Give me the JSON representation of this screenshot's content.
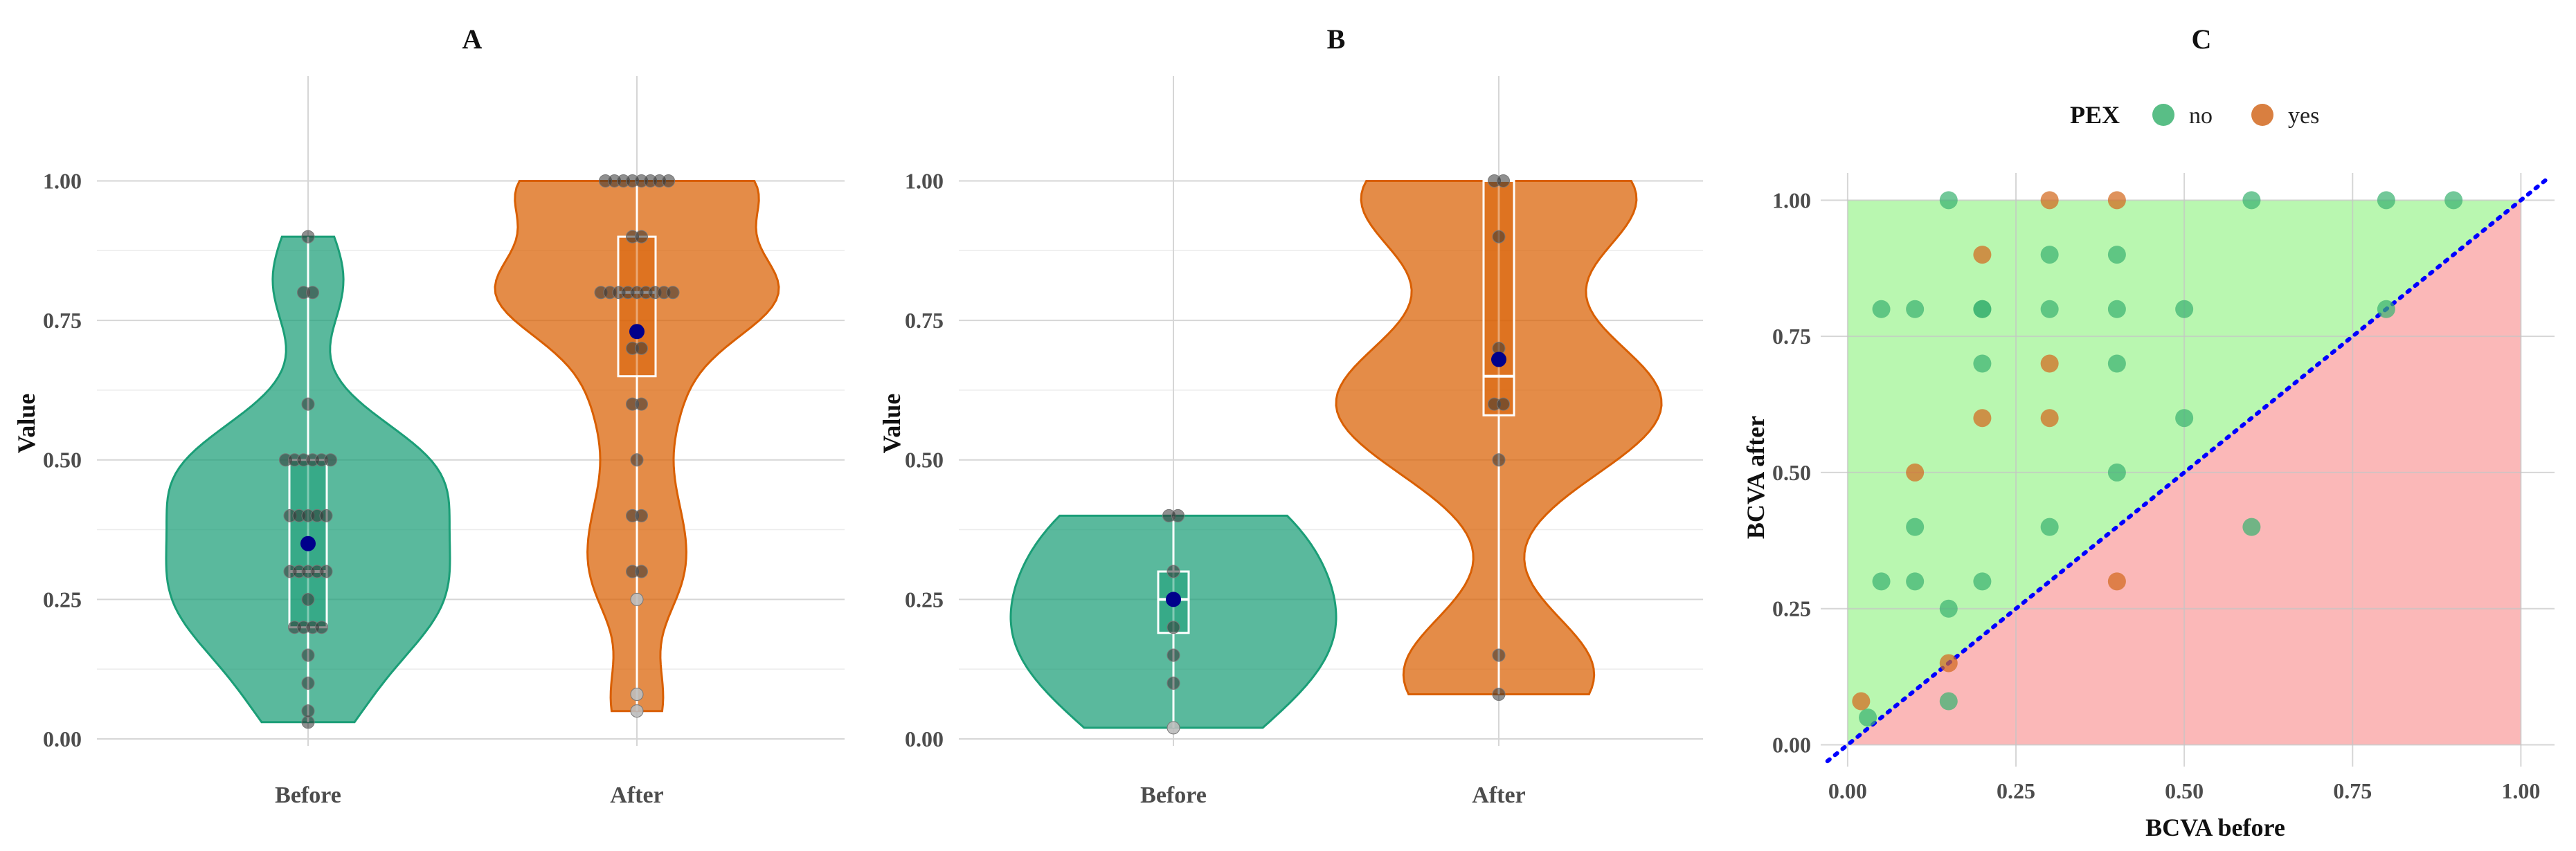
{
  "colors": {
    "before_fill": "#1b9e77",
    "after_fill": "#d95f02",
    "mean_point": "#00008b",
    "grid": "#d6d6d6",
    "improve_region": "#b9f7b0",
    "worsen_region": "#fbb8b8",
    "diagonal": "#0000ff"
  },
  "chart_data": [
    {
      "id": "A",
      "type": "violin",
      "title": "A",
      "xlabel": "",
      "ylabel": "Value",
      "ylim": [
        0,
        1.07
      ],
      "yticks": [
        "0.00",
        "0.25",
        "0.50",
        "0.75",
        "1.00"
      ],
      "categories": [
        "Before",
        "After"
      ],
      "groups": [
        {
          "category": "Before",
          "color": "#1b9e77",
          "min": 0.03,
          "q1": 0.2,
          "median": 0.3,
          "q3": 0.5,
          "max": 0.9,
          "mean": 0.35,
          "points": [
            0.03,
            0.05,
            0.1,
            0.15,
            0.2,
            0.2,
            0.2,
            0.2,
            0.25,
            0.3,
            0.3,
            0.3,
            0.3,
            0.3,
            0.4,
            0.4,
            0.4,
            0.4,
            0.4,
            0.5,
            0.5,
            0.5,
            0.5,
            0.5,
            0.5,
            0.6,
            0.8,
            0.8,
            0.9
          ]
        },
        {
          "category": "After",
          "color": "#d95f02",
          "min": 0.05,
          "q1": 0.65,
          "median": 0.8,
          "q3": 0.9,
          "max": 1.0,
          "mean": 0.73,
          "points": [
            0.05,
            0.08,
            0.25,
            0.3,
            0.3,
            0.4,
            0.4,
            0.5,
            0.6,
            0.6,
            0.7,
            0.7,
            0.8,
            0.8,
            0.8,
            0.8,
            0.8,
            0.8,
            0.8,
            0.8,
            0.8,
            0.9,
            0.9,
            1.0,
            1.0,
            1.0,
            1.0,
            1.0,
            1.0,
            1.0,
            1.0
          ]
        }
      ]
    },
    {
      "id": "B",
      "type": "violin",
      "title": "B",
      "xlabel": "",
      "ylabel": "Value",
      "ylim": [
        0,
        1.07
      ],
      "yticks": [
        "0.00",
        "0.25",
        "0.50",
        "0.75",
        "1.00"
      ],
      "categories": [
        "Before",
        "After"
      ],
      "groups": [
        {
          "category": "Before",
          "color": "#1b9e77",
          "min": 0.02,
          "q1": 0.19,
          "median": 0.25,
          "q3": 0.3,
          "max": 0.4,
          "mean": 0.25,
          "points": [
            0.02,
            0.1,
            0.15,
            0.2,
            0.25,
            0.3,
            0.4,
            0.4
          ]
        },
        {
          "category": "After",
          "color": "#d95f02",
          "min": 0.08,
          "q1": 0.58,
          "median": 0.65,
          "q3": 1.0,
          "max": 1.0,
          "mean": 0.68,
          "points": [
            0.08,
            0.15,
            0.5,
            0.6,
            0.6,
            0.7,
            0.9,
            1.0,
            1.0
          ]
        }
      ]
    },
    {
      "id": "C",
      "type": "scatter",
      "title": "C",
      "xlabel": "BCVA before",
      "ylabel": "BCVA after",
      "xlim": [
        -0.04,
        1.05
      ],
      "ylim": [
        -0.04,
        1.05
      ],
      "xticks": [
        "0.00",
        "0.25",
        "0.50",
        "0.75",
        "1.00"
      ],
      "yticks": [
        "0.00",
        "0.25",
        "0.50",
        "0.75",
        "1.00"
      ],
      "legend": {
        "title": "PEX",
        "placement": "top",
        "entries": [
          {
            "label": "no",
            "color": "#3cb371"
          },
          {
            "label": "yes",
            "color": "#d2691e"
          }
        ]
      },
      "series": [
        {
          "name": "no",
          "color": "#3cb371",
          "points": [
            [
              0.03,
              0.05
            ],
            [
              0.05,
              0.8
            ],
            [
              0.05,
              0.3
            ],
            [
              0.1,
              0.8
            ],
            [
              0.1,
              0.4
            ],
            [
              0.1,
              0.3
            ],
            [
              0.15,
              1.0
            ],
            [
              0.15,
              0.25
            ],
            [
              0.15,
              0.08
            ],
            [
              0.2,
              0.8
            ],
            [
              0.2,
              0.8
            ],
            [
              0.2,
              0.7
            ],
            [
              0.2,
              0.3
            ],
            [
              0.3,
              0.9
            ],
            [
              0.3,
              0.8
            ],
            [
              0.3,
              0.4
            ],
            [
              0.4,
              0.9
            ],
            [
              0.4,
              0.8
            ],
            [
              0.4,
              0.7
            ],
            [
              0.4,
              0.5
            ],
            [
              0.5,
              0.8
            ],
            [
              0.5,
              0.6
            ],
            [
              0.6,
              1.0
            ],
            [
              0.6,
              0.4
            ],
            [
              0.8,
              1.0
            ],
            [
              0.8,
              0.8
            ],
            [
              0.9,
              1.0
            ]
          ]
        },
        {
          "name": "yes",
          "color": "#d2691e",
          "points": [
            [
              0.02,
              0.08
            ],
            [
              0.1,
              0.5
            ],
            [
              0.15,
              0.15
            ],
            [
              0.2,
              0.9
            ],
            [
              0.2,
              0.6
            ],
            [
              0.3,
              1.0
            ],
            [
              0.3,
              0.7
            ],
            [
              0.3,
              0.6
            ],
            [
              0.4,
              1.0
            ],
            [
              0.4,
              0.3
            ]
          ]
        }
      ]
    }
  ]
}
